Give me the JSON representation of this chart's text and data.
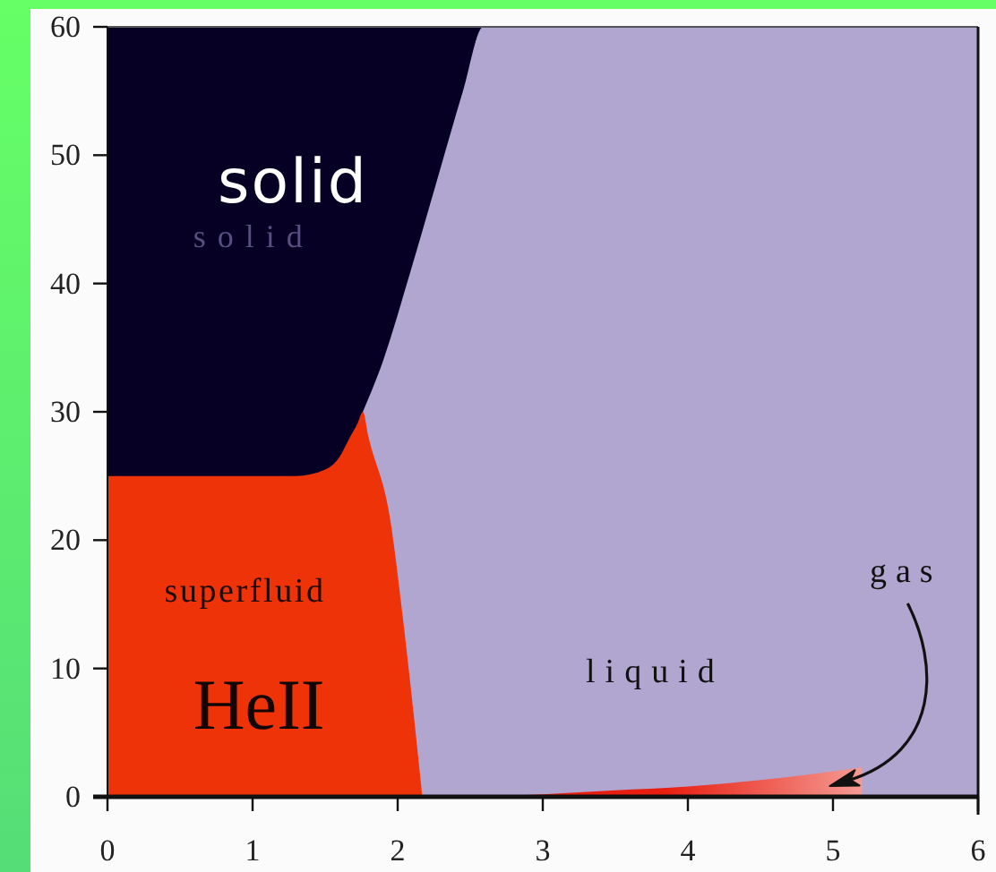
{
  "chart_data": {
    "type": "area",
    "annotations": [
      "solid",
      "HeII"
    ],
    "xlim": [
      0,
      6
    ],
    "ylim": [
      0,
      60
    ],
    "xticks": [
      0,
      1,
      2,
      3,
      4,
      5,
      6
    ],
    "yticks": [
      0,
      10,
      20,
      30,
      40,
      50,
      60
    ],
    "series": [
      {
        "name": "solid",
        "color": "#060024",
        "x": [
          0,
          2.59
        ],
        "values": [
          60,
          60
        ]
      },
      {
        "name": "liquid",
        "color": "#b0a6d0",
        "x": [
          1.76,
          1.9,
          2.09,
          2.27,
          2.45,
          2.59,
          6
        ],
        "values": [
          30,
          34,
          41,
          48,
          55,
          60,
          60
        ]
      },
      {
        "name": "superfluid",
        "color": "#ef3308",
        "x": [
          0,
          1.3,
          1.5,
          1.6,
          1.67,
          1.72,
          1.76,
          1.8,
          1.95,
          2.03,
          2.1,
          2.17
        ],
        "values": [
          25,
          25,
          25.5,
          26.5,
          28,
          29,
          30,
          28,
          21.5,
          14.5,
          7.5,
          0
        ]
      },
      {
        "name": "gas",
        "color": "#e81e10",
        "x": [
          2.17,
          3,
          3.5,
          4,
          4.5,
          5.2
        ],
        "values": [
          0,
          0.2,
          0.5,
          0.8,
          1.3,
          2.3
        ]
      }
    ]
  }
}
